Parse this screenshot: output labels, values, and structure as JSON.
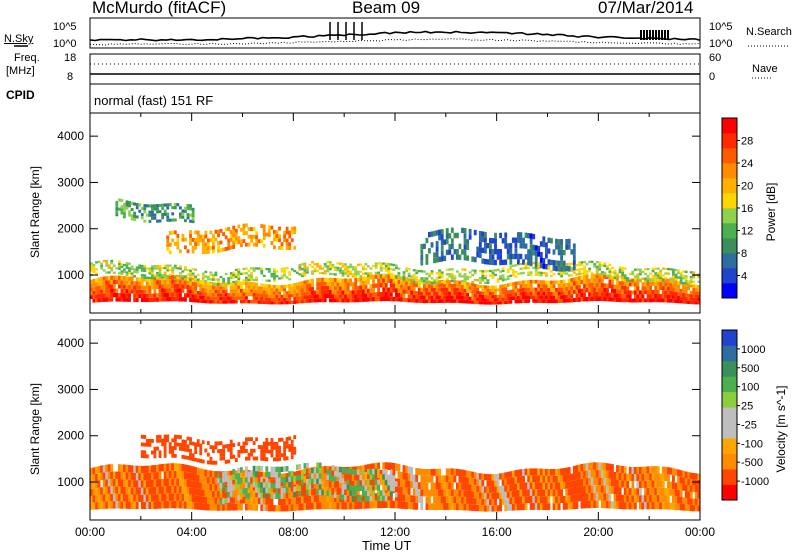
{
  "header": {
    "station": "McMurdo (fitACF)",
    "beam": "Beam 09",
    "date": "07/Mar/2014"
  },
  "top_panels": {
    "nsky_label": "N.Sky",
    "nsky_ticks": [
      "10^5",
      "10^0"
    ],
    "nsearch_label": "N.Search",
    "nsearch_ticks": [
      "10^5",
      "10^0"
    ],
    "freq_label": "Freq.",
    "freq_unit": "[MHz]",
    "freq_ticks": [
      "18",
      "8"
    ],
    "nave_label": "Nave",
    "nave_ticks": [
      "60",
      "0"
    ],
    "cpid_label": "CPID",
    "cpid_value": "normal (fast) 151 RF"
  },
  "colors": {
    "power": [
      "#0000ff",
      "#2244cc",
      "#2e6e9e",
      "#3a8f5a",
      "#4caf50",
      "#8fd14f",
      "#ffd700",
      "#ffb000",
      "#ff8c00",
      "#ff5a00",
      "#ff2a00",
      "#ff0000"
    ],
    "velocity": [
      "#ff0000",
      "#ff4500",
      "#ff8c00",
      "#ffa500",
      "#bebebe",
      "#bebebe",
      "#8bcf3f",
      "#4caf50",
      "#3a8f5a",
      "#2e6e9e",
      "#2244cc"
    ]
  },
  "chart_data": [
    {
      "type": "heatmap",
      "name": "power",
      "ylabel": "Slant Range [km]",
      "yticks": [
        "1000",
        "2000",
        "3000",
        "4000"
      ],
      "ylim": [
        180,
        4500
      ],
      "xlim": [
        0,
        24
      ],
      "colorbar_label": "Power [dB]",
      "colorbar_ticks": [
        "4",
        "8",
        "12",
        "16",
        "20",
        "24",
        "28"
      ],
      "clim": [
        0,
        30
      ],
      "bands": [
        {
          "x": [
            0,
            24
          ],
          "y": [
            400,
            900
          ],
          "value": 28
        },
        {
          "x": [
            0,
            24
          ],
          "y": [
            900,
            1200
          ],
          "value": 14
        },
        {
          "x": [
            1,
            4
          ],
          "y": [
            2200,
            2600
          ],
          "value": 10
        },
        {
          "x": [
            3,
            8
          ],
          "y": [
            1500,
            2000
          ],
          "value": 20
        },
        {
          "x": [
            13,
            19
          ],
          "y": [
            1200,
            1900
          ],
          "value": 6
        }
      ]
    },
    {
      "type": "heatmap",
      "name": "velocity",
      "ylabel": "Slant Range [km]",
      "yticks": [
        "1000",
        "2000",
        "3000",
        "4000"
      ],
      "ylim": [
        180,
        4500
      ],
      "xlim": [
        0,
        24
      ],
      "xticks": [
        "00:00",
        "04:00",
        "08:00",
        "12:00",
        "16:00",
        "20:00",
        "00:00"
      ],
      "xlabel": "Time UT",
      "colorbar_label": "Velocity [m s^-1]",
      "colorbar_ticks": [
        "1000",
        "500",
        "100",
        "25",
        "-25",
        "-100",
        "-500",
        "-1000"
      ],
      "clim": [
        -1000,
        1000
      ],
      "bands": [
        {
          "x": [
            0,
            24
          ],
          "y": [
            400,
            1300
          ],
          "value": -100
        },
        {
          "x": [
            2,
            8
          ],
          "y": [
            1500,
            2000
          ],
          "value": -200
        },
        {
          "x": [
            5,
            12
          ],
          "y": [
            600,
            1300
          ],
          "value": 50
        }
      ]
    }
  ]
}
